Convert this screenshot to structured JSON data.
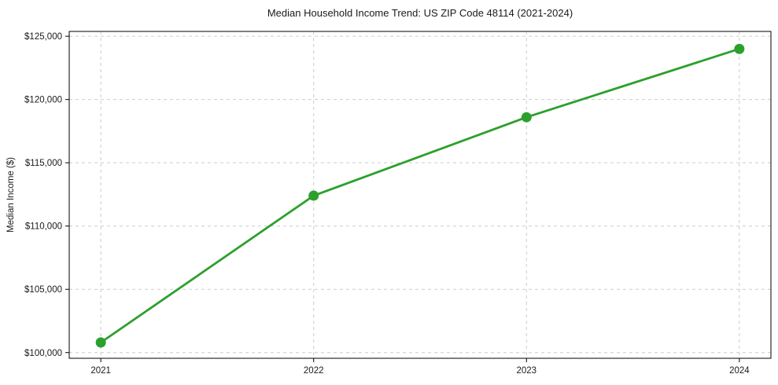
{
  "chart_data": {
    "type": "line",
    "title": "Median Household Income Trend: US ZIP Code 48114 (2021-2024)",
    "categories": [
      "2021",
      "2022",
      "2023",
      "2024"
    ],
    "values": [
      100800,
      112400,
      118600,
      124000
    ],
    "xlabel": "",
    "ylabel": "Median Income ($)",
    "ylim": [
      99550,
      125380
    ],
    "yticks": [
      100000,
      105000,
      110000,
      115000,
      120000,
      125000
    ],
    "ytick_labels": [
      "$100,000",
      "$105,000",
      "$110,000",
      "$115,000",
      "$120,000",
      "$125,000"
    ],
    "grid": "dashed-both-axes",
    "legend": "none",
    "style": {
      "line_color": "#2ca02c",
      "marker": "circle",
      "marker_color": "#2ca02c",
      "grid_color": "#cccccc",
      "axis_color": "#000000",
      "text_color": "#1a1a1a",
      "background": "#ffffff"
    }
  }
}
